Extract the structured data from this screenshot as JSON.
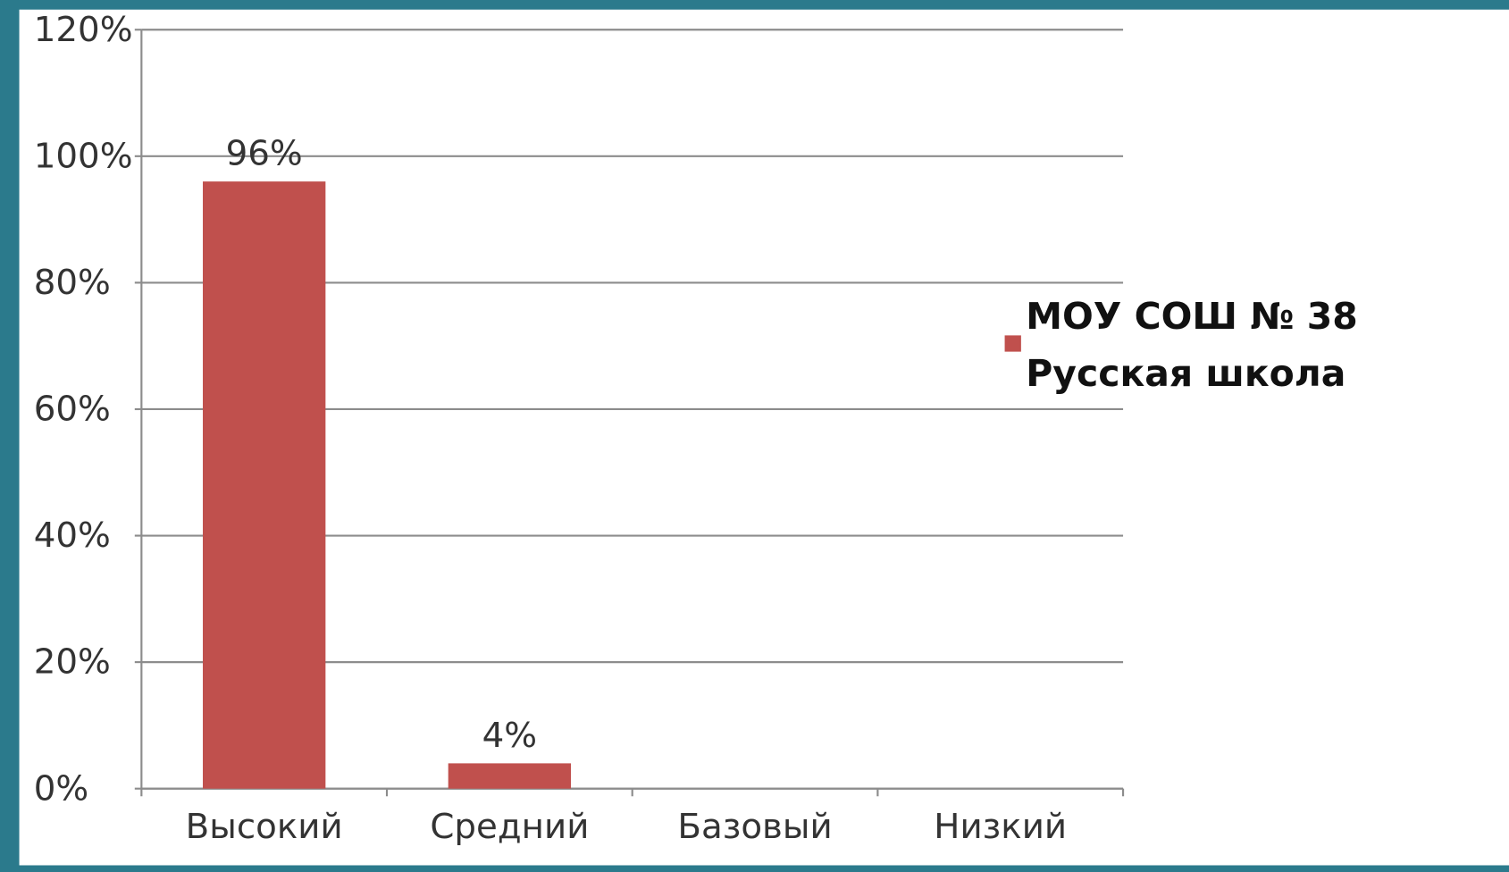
{
  "chart_data": {
    "type": "bar",
    "categories": [
      "Высокий",
      "Средний",
      "Базовый",
      "Низкий"
    ],
    "series": [
      {
        "name": "МОУ СОШ № 38 Русская школа",
        "color": "#c0504d",
        "values": [
          96,
          4,
          null,
          null
        ],
        "value_labels": [
          "96%",
          "4%",
          null,
          null
        ]
      }
    ],
    "ylim": [
      0,
      120
    ],
    "yticks": [
      {
        "value": 0,
        "label": "0%"
      },
      {
        "value": 20,
        "label": "20%"
      },
      {
        "value": 40,
        "label": "40%"
      },
      {
        "value": 60,
        "label": "60%"
      },
      {
        "value": 80,
        "label": "80%"
      },
      {
        "value": 100,
        "label": "100%"
      },
      {
        "value": 120,
        "label": "120%"
      }
    ],
    "grid": true,
    "legend": "right"
  }
}
